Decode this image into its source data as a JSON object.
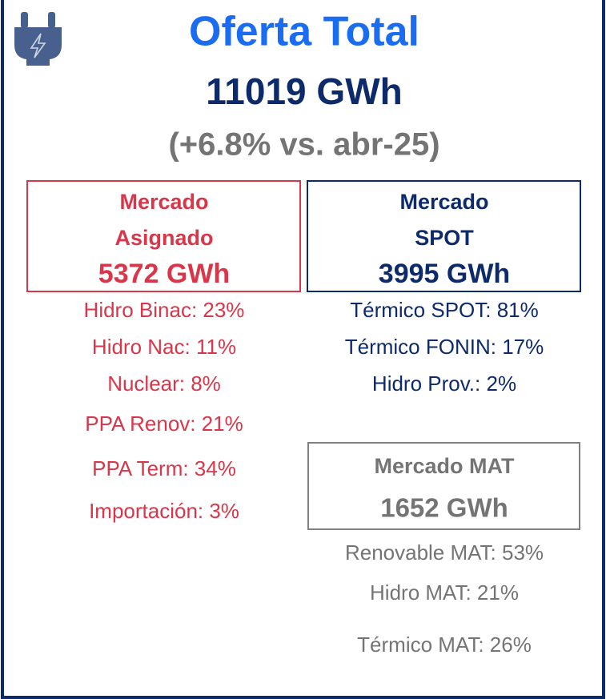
{
  "header": {
    "title": "Oferta Total",
    "total": "11019 GWh",
    "change": "(+6.8% vs. abr-25)"
  },
  "asignado": {
    "label_line1": "Mercado",
    "label_line2": "Asignado",
    "total": "5372 GWh",
    "items": [
      "Hidro Binac: 23%",
      "Hidro Nac: 11%",
      "Nuclear: 8%",
      "PPA Renov: 21%",
      "PPA Term: 34%",
      "Importación: 3%"
    ]
  },
  "spot": {
    "label_line1": "Mercado",
    "label_line2": "SPOT",
    "total": "3995 GWh",
    "items": [
      "Térmico SPOT: 81%",
      "Térmico FONIN: 17%",
      "Hidro Prov.: 2%"
    ]
  },
  "mat": {
    "label": "Mercado MAT",
    "total": "1652 GWh",
    "items": [
      "Renovable MAT: 53%",
      "Hidro MAT: 21%",
      "Térmico MAT: 26%"
    ]
  }
}
